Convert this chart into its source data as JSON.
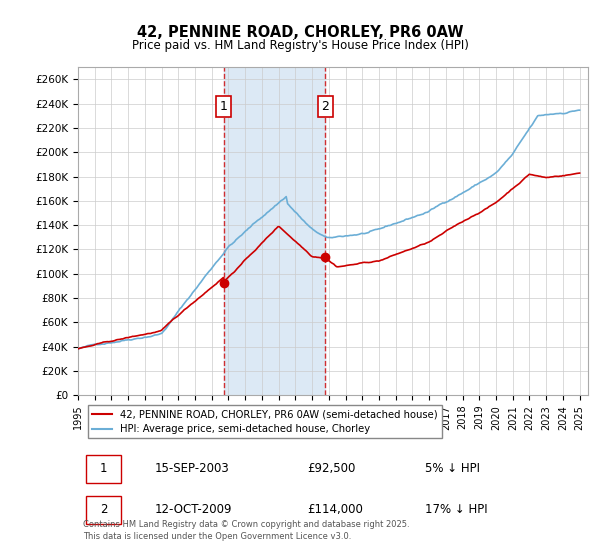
{
  "title": "42, PENNINE ROAD, CHORLEY, PR6 0AW",
  "subtitle": "Price paid vs. HM Land Registry's House Price Index (HPI)",
  "ylabel": "",
  "xlim_start": 1995.0,
  "xlim_end": 2025.5,
  "ylim_min": 0,
  "ylim_max": 270000,
  "yticks": [
    0,
    20000,
    40000,
    60000,
    80000,
    100000,
    120000,
    140000,
    160000,
    180000,
    200000,
    220000,
    240000,
    260000
  ],
  "ytick_labels": [
    "£0",
    "£20K",
    "£40K",
    "£60K",
    "£80K",
    "£100K",
    "£120K",
    "£140K",
    "£160K",
    "£180K",
    "£200K",
    "£220K",
    "£240K",
    "£260K"
  ],
  "hpi_color": "#6baed6",
  "price_color": "#cc0000",
  "vline1_x": 2003.71,
  "vline2_x": 2009.79,
  "marker1_x": 2003.71,
  "marker1_y": 92500,
  "marker2_x": 2009.79,
  "marker2_y": 114000,
  "annotation1": "1",
  "annotation2": "2",
  "legend_price_label": "42, PENNINE ROAD, CHORLEY, PR6 0AW (semi-detached house)",
  "legend_hpi_label": "HPI: Average price, semi-detached house, Chorley",
  "table_row1": [
    "1",
    "15-SEP-2003",
    "£92,500",
    "5% ↓ HPI"
  ],
  "table_row2": [
    "2",
    "12-OCT-2009",
    "£114,000",
    "17% ↓ HPI"
  ],
  "footer": "Contains HM Land Registry data © Crown copyright and database right 2025.\nThis data is licensed under the Open Government Licence v3.0.",
  "bg_highlight_color": "#dce9f5",
  "xticks": [
    1995,
    1996,
    1997,
    1998,
    1999,
    2000,
    2001,
    2002,
    2003,
    2004,
    2005,
    2006,
    2007,
    2008,
    2009,
    2010,
    2011,
    2012,
    2013,
    2014,
    2015,
    2016,
    2017,
    2018,
    2019,
    2020,
    2021,
    2022,
    2023,
    2024,
    2025
  ]
}
